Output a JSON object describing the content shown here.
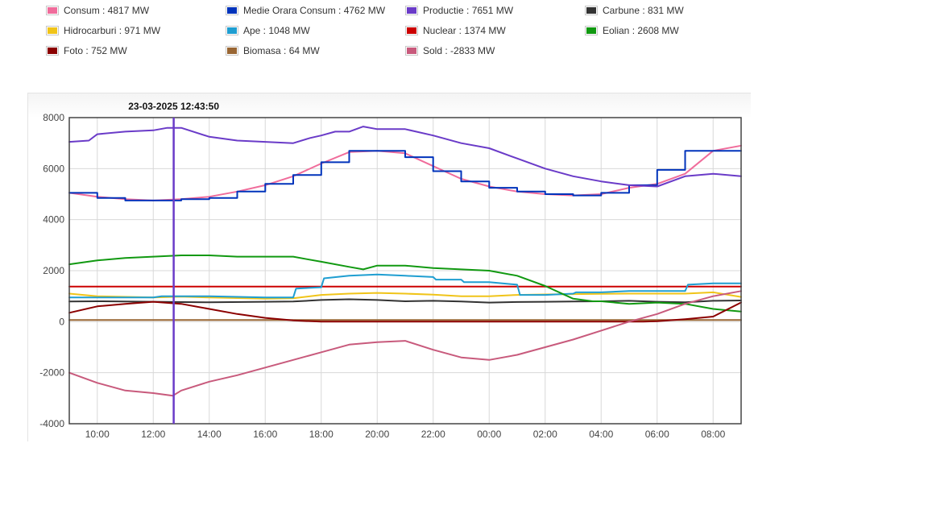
{
  "legend": {
    "items": [
      {
        "label": "Consum : 4817 MW",
        "color": "#f06c9b"
      },
      {
        "label": "Medie Orara Consum : 4762 MW",
        "color": "#0033bb"
      },
      {
        "label": "Productie : 7651 MW",
        "color": "#6a3bc8"
      },
      {
        "label": "Carbune : 831 MW",
        "color": "#333333"
      },
      {
        "label": "Hidrocarburi : 971 MW",
        "color": "#f0c419"
      },
      {
        "label": "Ape : 1048 MW",
        "color": "#1f9ed1"
      },
      {
        "label": "Nuclear : 1374 MW",
        "color": "#cc0000"
      },
      {
        "label": "Eolian : 2608 MW",
        "color": "#119911"
      },
      {
        "label": "Foto : 752 MW",
        "color": "#8b0000"
      },
      {
        "label": "Biomasa : 64 MW",
        "color": "#996633"
      },
      {
        "label": "Sold : -2833 MW",
        "color": "#c85a7c"
      }
    ]
  },
  "chart_data": {
    "type": "line",
    "title": "",
    "xlabel": "",
    "ylabel": "",
    "x_domain_hours": [
      9.0,
      33.0
    ],
    "xticks": [
      "10:00",
      "12:00",
      "14:00",
      "16:00",
      "18:00",
      "20:00",
      "22:00",
      "00:00",
      "02:00",
      "04:00",
      "06:00",
      "08:00"
    ],
    "ylim": [
      -4000,
      8000
    ],
    "yticks": [
      "-4000",
      "-2000",
      "0",
      "2000",
      "4000",
      "6000",
      "8000"
    ],
    "grid": true,
    "crosshair": {
      "label": "23-03-2025 12:43:50",
      "hour": 12.73
    },
    "series": [
      {
        "name": "Nuclear",
        "color": "#cc0000",
        "x": [
          9,
          33
        ],
        "y": [
          1374,
          1374
        ]
      },
      {
        "name": "Biomasa",
        "color": "#996633",
        "x": [
          9,
          33
        ],
        "y": [
          64,
          64
        ]
      },
      {
        "name": "Carbune",
        "color": "#333333",
        "x": [
          9,
          10,
          12,
          14,
          16,
          17,
          18,
          19,
          20,
          21,
          22,
          23,
          24,
          25,
          26,
          27,
          28,
          29,
          30,
          31,
          32,
          33
        ],
        "y": [
          790,
          800,
          780,
          760,
          780,
          790,
          850,
          880,
          850,
          800,
          820,
          790,
          750,
          770,
          780,
          790,
          800,
          820,
          780,
          760,
          820,
          831
        ]
      },
      {
        "name": "Hidrocarburi",
        "color": "#f0c419",
        "x": [
          9,
          10,
          12,
          13,
          14,
          16,
          17,
          18,
          19,
          20,
          21,
          22,
          23,
          24,
          25,
          26,
          27,
          28,
          29,
          30,
          31,
          32,
          33
        ],
        "y": [
          1100,
          1000,
          950,
          980,
          950,
          900,
          920,
          1050,
          1100,
          1130,
          1100,
          1060,
          1000,
          1000,
          1050,
          1070,
          1080,
          1090,
          1100,
          1100,
          1100,
          1150,
          971
        ]
      },
      {
        "name": "Ape",
        "color": "#1f9ed1",
        "x": [
          9,
          10,
          12,
          12.3,
          14,
          16,
          17,
          17.1,
          18,
          18.1,
          19,
          20,
          21,
          22,
          22.1,
          23,
          23.1,
          24,
          25,
          25.1,
          26,
          27,
          27.1,
          28,
          29,
          30,
          31,
          31.1,
          32,
          33
        ],
        "y": [
          950,
          950,
          950,
          1000,
          1000,
          950,
          950,
          1300,
          1350,
          1700,
          1800,
          1850,
          1800,
          1750,
          1650,
          1650,
          1550,
          1550,
          1450,
          1050,
          1050,
          1100,
          1150,
          1150,
          1200,
          1200,
          1200,
          1450,
          1500,
          1500
        ]
      },
      {
        "name": "Eolian",
        "color": "#119911",
        "x": [
          9,
          10,
          11,
          12,
          13,
          14,
          15,
          16,
          17,
          17.5,
          18,
          19,
          19.5,
          20,
          21,
          22,
          23,
          24,
          25,
          26,
          27,
          27.7,
          28,
          29,
          30,
          31,
          32,
          33
        ],
        "y": [
          2250,
          2400,
          2500,
          2550,
          2600,
          2600,
          2550,
          2550,
          2550,
          2450,
          2350,
          2150,
          2050,
          2200,
          2200,
          2100,
          2050,
          2000,
          1800,
          1400,
          900,
          800,
          800,
          700,
          750,
          700,
          500,
          400
        ]
      },
      {
        "name": "Foto",
        "color": "#8b0000",
        "x": [
          9,
          10,
          11,
          12,
          13,
          14,
          15,
          16,
          17,
          18,
          19,
          20,
          22,
          24,
          26,
          28,
          29,
          29.5,
          30,
          31,
          32,
          33
        ],
        "y": [
          350,
          600,
          700,
          780,
          700,
          500,
          300,
          150,
          50,
          0,
          0,
          0,
          0,
          0,
          0,
          0,
          0,
          5,
          20,
          100,
          200,
          752
        ]
      },
      {
        "name": "Sold",
        "color": "#c85a7c",
        "x": [
          9,
          10,
          11,
          12,
          12.7,
          13,
          14,
          15,
          16,
          17,
          18,
          19,
          20,
          21,
          22,
          23,
          24,
          25,
          26,
          27,
          28,
          29,
          30,
          31,
          32,
          33
        ],
        "y": [
          -2000,
          -2400,
          -2700,
          -2800,
          -2900,
          -2700,
          -2350,
          -2100,
          -1800,
          -1500,
          -1200,
          -900,
          -800,
          -750,
          -1100,
          -1400,
          -1500,
          -1300,
          -1000,
          -700,
          -350,
          0,
          300,
          700,
          1000,
          1200
        ]
      },
      {
        "name": "Consum",
        "color": "#f06c9b",
        "x": [
          9,
          10,
          11,
          12,
          13,
          14,
          15,
          16,
          17,
          18,
          19,
          20,
          21,
          22,
          23,
          24,
          25,
          26,
          27,
          28,
          29,
          30,
          31,
          32,
          33
        ],
        "y": [
          5050,
          4900,
          4800,
          4750,
          4800,
          4900,
          5100,
          5350,
          5700,
          6200,
          6650,
          6700,
          6600,
          6100,
          5600,
          5300,
          5100,
          5000,
          4950,
          5000,
          5250,
          5400,
          5800,
          6700,
          6900
        ]
      },
      {
        "name": "Medie Orara Consum",
        "color": "#0033bb",
        "x": [
          9,
          10,
          10,
          11,
          11,
          12,
          12,
          13,
          13,
          14,
          14,
          15,
          15,
          16,
          16,
          17,
          17,
          18,
          18,
          19,
          19,
          20,
          20,
          21,
          21,
          22,
          22,
          23,
          23,
          24,
          24,
          25,
          25,
          26,
          26,
          27,
          27,
          28,
          28,
          29,
          29,
          30,
          30,
          31,
          31,
          32,
          32,
          33
        ],
        "y": [
          5050,
          5050,
          4850,
          4850,
          4750,
          4750,
          4750,
          4750,
          4800,
          4800,
          4850,
          4850,
          5100,
          5100,
          5400,
          5400,
          5750,
          5750,
          6250,
          6250,
          6700,
          6700,
          6700,
          6700,
          6450,
          6450,
          5900,
          5900,
          5500,
          5500,
          5250,
          5250,
          5100,
          5100,
          5000,
          5000,
          4950,
          4950,
          5050,
          5050,
          5350,
          5350,
          5950,
          5950,
          6700,
          6700,
          6700,
          6700
        ]
      },
      {
        "name": "Productie",
        "color": "#6a3bc8",
        "x": [
          9,
          9.7,
          10,
          11,
          12,
          12.5,
          13,
          14,
          15,
          16,
          17,
          17.6,
          18,
          18.5,
          19,
          19.5,
          20,
          21,
          22,
          23,
          24,
          25,
          26,
          27,
          28,
          29,
          30,
          31,
          32,
          33
        ],
        "y": [
          7050,
          7100,
          7350,
          7450,
          7500,
          7600,
          7600,
          7250,
          7100,
          7050,
          7000,
          7200,
          7300,
          7450,
          7450,
          7650,
          7550,
          7550,
          7300,
          7000,
          6800,
          6400,
          6000,
          5700,
          5500,
          5350,
          5300,
          5700,
          5800,
          5700
        ]
      }
    ]
  }
}
